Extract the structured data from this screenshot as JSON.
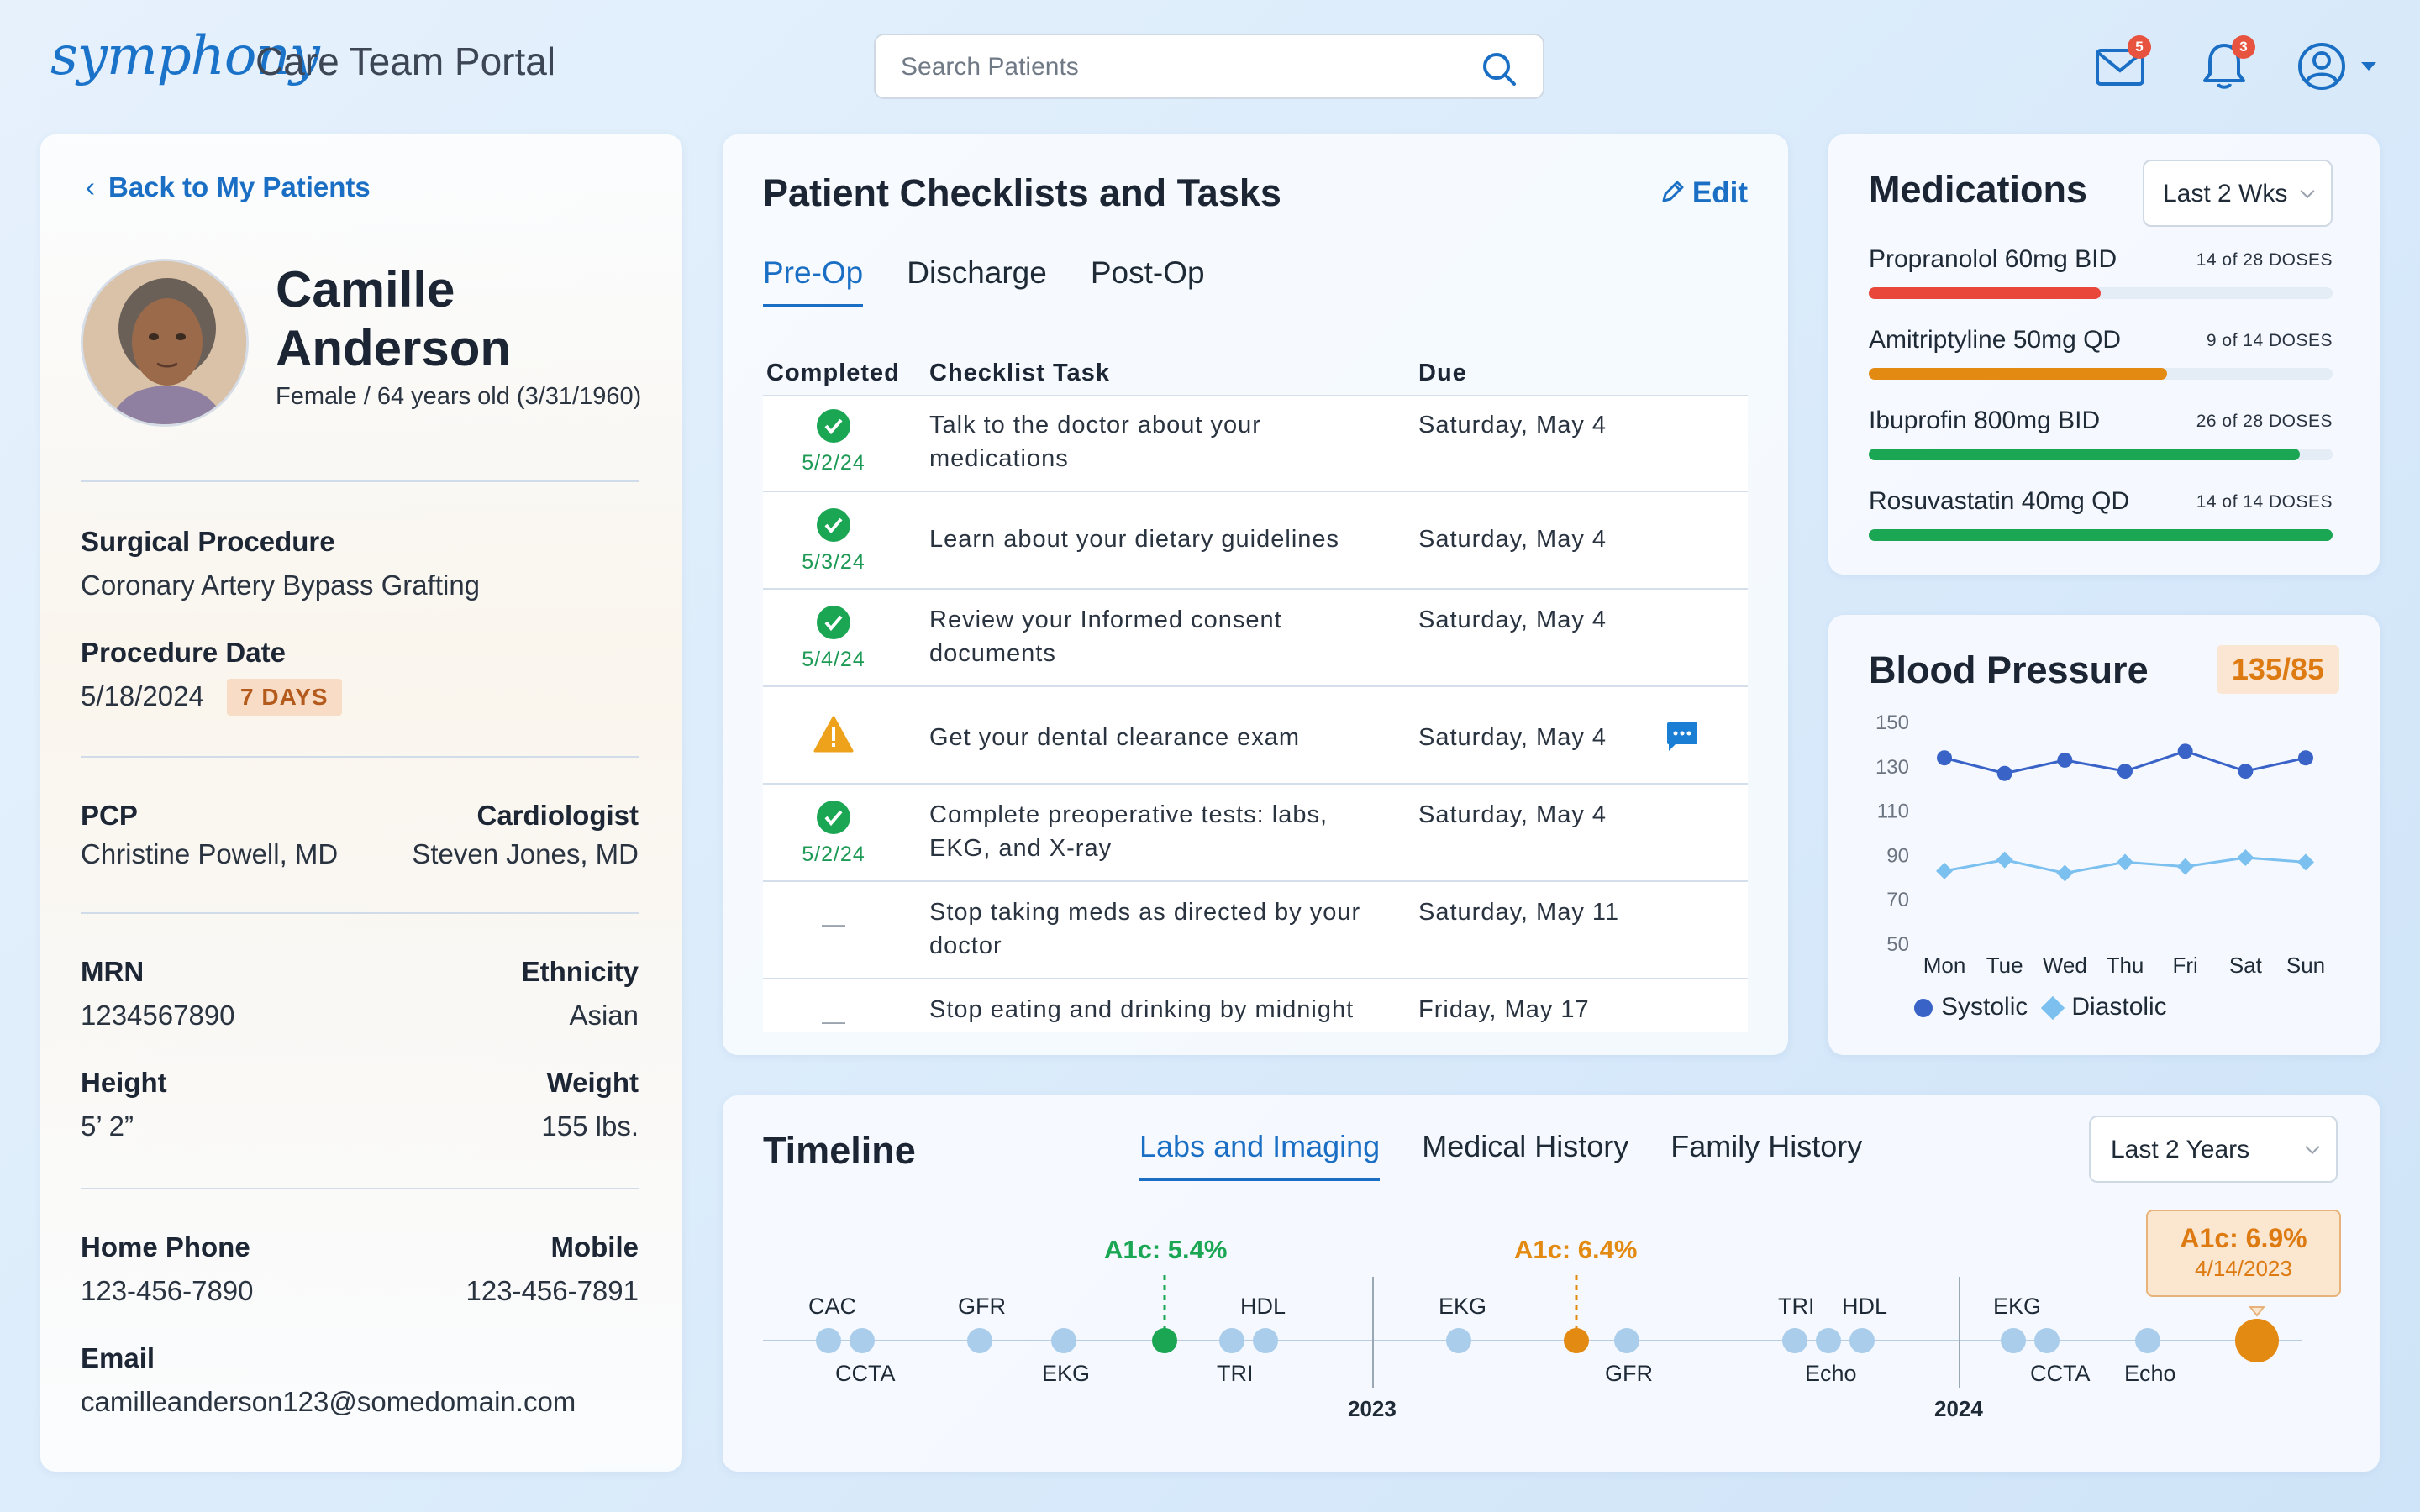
{
  "app": {
    "logo": "symphony",
    "title": "Care Team Portal"
  },
  "search": {
    "placeholder": "Search Patients"
  },
  "header": {
    "mail_count": "5",
    "notification_count": "3"
  },
  "patient": {
    "back_label": "Back to My Patients",
    "name": "Camille Anderson",
    "demographics": "Female / 64 years old (3/31/1960)",
    "surgical_procedure_label": "Surgical Procedure",
    "surgical_procedure": "Coronary Artery Bypass Grafting",
    "procedure_date_label": "Procedure Date",
    "procedure_date": "5/18/2024",
    "days_badge": "7 DAYS",
    "pcp_label": "PCP",
    "pcp": "Christine Powell, MD",
    "cardiologist_label": "Cardiologist",
    "cardiologist": "Steven Jones, MD",
    "mrn_label": "MRN",
    "mrn": "1234567890",
    "ethnicity_label": "Ethnicity",
    "ethnicity": "Asian",
    "height_label": "Height",
    "height": "5’ 2”",
    "weight_label": "Weight",
    "weight": "155 lbs.",
    "home_phone_label": "Home Phone",
    "home_phone": "123-456-7890",
    "mobile_label": "Mobile",
    "mobile": "123-456-7891",
    "email_label": "Email",
    "email": "camilleanderson123@somedomain.com"
  },
  "checklist": {
    "title": "Patient Checklists and Tasks",
    "edit_label": "Edit",
    "tabs": [
      "Pre-Op",
      "Discharge",
      "Post-Op"
    ],
    "columns": [
      "Completed",
      "Checklist Task",
      "Due"
    ],
    "rows": [
      {
        "status": "done",
        "date": "5/2/24",
        "task": "Talk to the doctor about your medications",
        "due": "Saturday, May 4"
      },
      {
        "status": "done",
        "date": "5/3/24",
        "task": "Learn about your dietary guidelines",
        "due": "Saturday, May 4"
      },
      {
        "status": "done",
        "date": "5/4/24",
        "task": "Review your Informed consent documents",
        "due": "Saturday, May 4"
      },
      {
        "status": "warning",
        "date": "",
        "task": "Get your dental clearance exam",
        "due": "Saturday, May 4"
      },
      {
        "status": "done",
        "date": "5/2/24",
        "task": "Complete preoperative tests: labs, EKG, and X-ray",
        "due": "Saturday, May 4"
      },
      {
        "status": "pending",
        "date": "—",
        "task": "Stop taking meds as directed by your doctor",
        "due": "Saturday, May 11"
      },
      {
        "status": "pending",
        "date": "—",
        "task": "Stop eating and drinking by midnight",
        "due": "Friday, May 17"
      }
    ]
  },
  "medications": {
    "title": "Medications",
    "range": "Last 2 Wks",
    "items": [
      {
        "name": "Propranolol 60mg BID",
        "count": "14 of 28 DOSES",
        "fraction": 0.5,
        "color": "#e8473a"
      },
      {
        "name": "Amitriptyline 50mg QD",
        "count": "9 of 14 DOSES",
        "fraction": 0.643,
        "color": "#e38a12"
      },
      {
        "name": "Ibuprofin 800mg BID",
        "count": "26 of 28 DOSES",
        "fraction": 0.929,
        "color": "#1aa653"
      },
      {
        "name": "Rosuvastatin 40mg QD",
        "count": "14 of 14 DOSES",
        "fraction": 1.0,
        "color": "#1aa653"
      }
    ]
  },
  "blood_pressure": {
    "title": "Blood Pressure",
    "current": "135/85",
    "legend": [
      "Systolic",
      "Diastolic"
    ]
  },
  "chart_data": {
    "type": "line",
    "categories": [
      "Mon",
      "Tue",
      "Wed",
      "Thu",
      "Fri",
      "Sat",
      "Sun"
    ],
    "series": [
      {
        "name": "Systolic",
        "values": [
          134,
          127,
          133,
          128,
          137,
          128,
          134
        ],
        "color": "#3a63c8"
      },
      {
        "name": "Diastolic",
        "values": [
          83,
          88,
          82,
          87,
          85,
          89,
          87
        ],
        "color": "#7cc0ef"
      }
    ],
    "y_ticks": [
      "150",
      "130",
      "110",
      "90",
      "70",
      "50"
    ],
    "ylim": [
      50,
      150
    ],
    "legend_position": "bottom"
  },
  "timeline": {
    "title": "Timeline",
    "tabs": [
      "Labs and Imaging",
      "Medical History",
      "Family History"
    ],
    "range": "Last 2 Years",
    "years": [
      "2023",
      "2024"
    ],
    "labels_above": [
      "CAC",
      "GFR",
      "HDL",
      "EKG",
      "TRI",
      "HDL",
      "EKG"
    ],
    "labels_below": [
      "CCTA",
      "EKG",
      "TRI",
      "GFR",
      "Echo",
      "CCTA",
      "Echo"
    ],
    "a1c_markers": [
      {
        "label": "A1c: 5.4%",
        "color": "#1aa653"
      },
      {
        "label": "A1c: 6.4%",
        "color": "#e38a12"
      }
    ],
    "a1c_callout": {
      "label": "A1c: 6.9%",
      "date": "4/14/2023"
    }
  }
}
